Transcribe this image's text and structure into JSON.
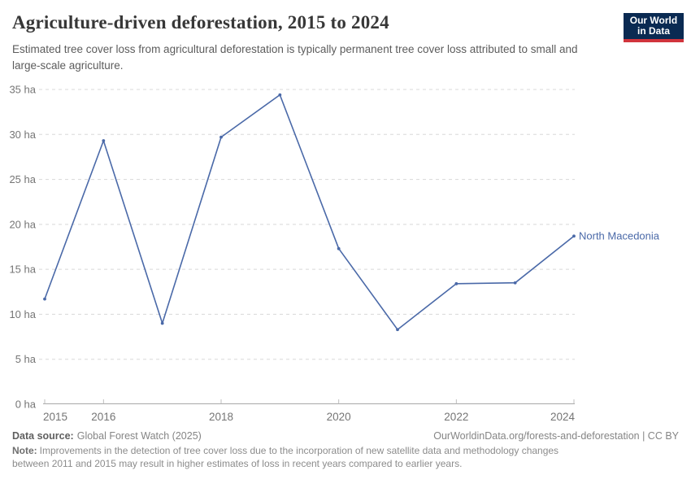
{
  "header": {
    "title": "Agriculture-driven deforestation, 2015 to 2024",
    "subtitle": "Estimated tree cover loss from agricultural deforestation is typically permanent tree cover loss attributed to small and large-scale agriculture."
  },
  "logo": {
    "line1": "Our World",
    "line2": "in Data",
    "bg_color": "#0a2a52",
    "bar_color": "#d1343c"
  },
  "chart_data": {
    "type": "line",
    "title": "Agriculture-driven deforestation, 2015 to 2024",
    "x": [
      2015,
      2016,
      2017,
      2018,
      2019,
      2020,
      2021,
      2022,
      2023,
      2024
    ],
    "series": [
      {
        "name": "North Macedonia",
        "values": [
          11.7,
          29.3,
          9.0,
          29.7,
          34.4,
          17.3,
          8.3,
          13.4,
          13.5,
          18.7
        ],
        "color": "#4a69a8"
      }
    ],
    "unit": "ha",
    "ylim": [
      0,
      35
    ],
    "yticks": [
      0,
      5,
      10,
      15,
      20,
      25,
      30,
      35
    ],
    "xticks": [
      2015,
      2016,
      2018,
      2020,
      2022,
      2024
    ],
    "grid": "horizontal-dashed",
    "legend_position": "end-of-line"
  },
  "footer": {
    "source_label": "Data source:",
    "source_text": "Global Forest Watch (2025)",
    "link_text": "OurWorldinData.org/forests-and-deforestation | CC BY",
    "note_label": "Note:",
    "note_text": "Improvements in the detection of tree cover loss due to the incorporation of new satellite data and methodology changes between 2011 and 2015 may result in higher estimates of loss in recent years compared to earlier years."
  }
}
